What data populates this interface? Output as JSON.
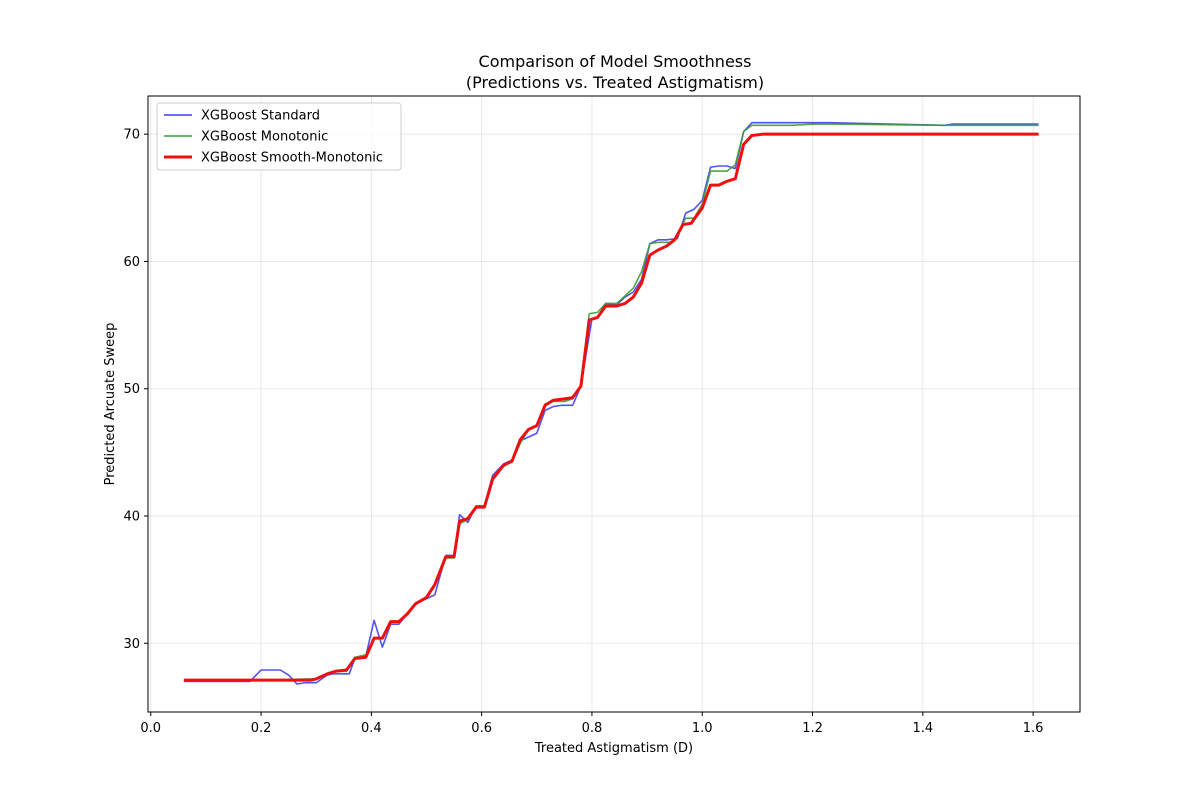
{
  "chart_data": {
    "type": "line",
    "title": "Comparison of Model Smoothness",
    "subtitle": "(Predictions vs. Treated Astigmatism)",
    "xlabel": "Treated Astigmatism (D)",
    "ylabel": "Predicted Arcuate Sweep",
    "xlim": [
      -0.005,
      1.685
    ],
    "ylim": [
      24.6,
      73.0
    ],
    "xticks": [
      0.0,
      0.2,
      0.4,
      0.6,
      0.8,
      1.0,
      1.2,
      1.4,
      1.6
    ],
    "xtick_labels": [
      "0.0",
      "0.2",
      "0.4",
      "0.6",
      "0.8",
      "1.0",
      "1.2",
      "1.4",
      "1.6"
    ],
    "yticks": [
      30,
      40,
      50,
      60,
      70
    ],
    "ytick_labels": [
      "30",
      "40",
      "50",
      "60",
      "70"
    ],
    "grid": true,
    "legend_position": "upper-left",
    "series": [
      {
        "name": "XGBoost Standard",
        "color": "#3f3fef",
        "x": [
          0.06,
          0.18,
          0.2,
          0.235,
          0.25,
          0.265,
          0.28,
          0.3,
          0.32,
          0.33,
          0.35,
          0.36,
          0.37,
          0.39,
          0.405,
          0.42,
          0.435,
          0.45,
          0.465,
          0.48,
          0.5,
          0.515,
          0.535,
          0.55,
          0.56,
          0.575,
          0.59,
          0.605,
          0.62,
          0.64,
          0.655,
          0.67,
          0.7,
          0.715,
          0.73,
          0.745,
          0.765,
          0.78,
          0.8,
          0.81,
          0.825,
          0.845,
          0.86,
          0.875,
          0.89,
          0.905,
          0.92,
          0.935,
          0.955,
          0.97,
          0.985,
          1.0,
          1.015,
          1.03,
          1.045,
          1.06,
          1.075,
          1.09,
          1.11,
          1.23,
          1.44,
          1.455,
          1.61
        ],
        "y": [
          27.0,
          27.0,
          27.9,
          27.9,
          27.5,
          26.8,
          26.9,
          26.9,
          27.5,
          27.6,
          27.6,
          27.6,
          28.8,
          29.0,
          31.8,
          29.7,
          31.5,
          31.5,
          32.3,
          33.1,
          33.5,
          33.8,
          36.9,
          36.9,
          40.1,
          39.5,
          40.8,
          40.8,
          43.2,
          44.1,
          44.4,
          45.9,
          46.5,
          48.3,
          48.6,
          48.7,
          48.7,
          50.2,
          55.5,
          55.6,
          56.7,
          56.6,
          57.2,
          57.6,
          58.6,
          61.4,
          61.7,
          61.7,
          61.8,
          63.8,
          64.1,
          64.8,
          67.4,
          67.5,
          67.5,
          67.3,
          70.2,
          70.9,
          70.9,
          70.9,
          70.7,
          70.8,
          70.8
        ]
      },
      {
        "name": "XGBoost Monotonic",
        "color": "#3a9f3a",
        "x": [
          0.06,
          0.2,
          0.29,
          0.3,
          0.32,
          0.335,
          0.355,
          0.37,
          0.39,
          0.405,
          0.42,
          0.435,
          0.45,
          0.465,
          0.48,
          0.5,
          0.515,
          0.535,
          0.55,
          0.56,
          0.575,
          0.59,
          0.605,
          0.62,
          0.64,
          0.655,
          0.67,
          0.685,
          0.7,
          0.715,
          0.73,
          0.75,
          0.765,
          0.78,
          0.795,
          0.81,
          0.825,
          0.845,
          0.86,
          0.875,
          0.89,
          0.905,
          0.92,
          0.945,
          0.955,
          0.97,
          0.985,
          1.0,
          1.015,
          1.045,
          1.06,
          1.075,
          1.09,
          1.16,
          1.21,
          1.44,
          1.455,
          1.61
        ],
        "y": [
          27.1,
          27.1,
          27.2,
          27.2,
          27.6,
          27.8,
          27.8,
          28.9,
          29.1,
          30.4,
          30.4,
          31.7,
          31.7,
          32.3,
          33.1,
          33.6,
          34.5,
          36.7,
          36.7,
          39.4,
          39.7,
          40.8,
          40.8,
          43.0,
          43.9,
          44.3,
          45.7,
          46.8,
          47.1,
          48.8,
          49.0,
          49.0,
          49.2,
          50.3,
          55.9,
          56.0,
          56.7,
          56.7,
          57.3,
          57.9,
          59.2,
          61.4,
          61.5,
          61.5,
          62.0,
          63.4,
          63.4,
          64.5,
          67.1,
          67.1,
          67.6,
          70.2,
          70.7,
          70.7,
          70.8,
          70.7,
          70.7,
          70.7
        ]
      },
      {
        "name": "XGBoost Smooth-Monotonic",
        "color": "#ee0f0f",
        "x": [
          0.06,
          0.18,
          0.2,
          0.29,
          0.3,
          0.32,
          0.335,
          0.355,
          0.37,
          0.39,
          0.405,
          0.42,
          0.435,
          0.45,
          0.465,
          0.48,
          0.5,
          0.515,
          0.535,
          0.55,
          0.56,
          0.575,
          0.59,
          0.605,
          0.62,
          0.64,
          0.655,
          0.67,
          0.685,
          0.7,
          0.715,
          0.73,
          0.75,
          0.765,
          0.78,
          0.795,
          0.81,
          0.825,
          0.845,
          0.86,
          0.875,
          0.89,
          0.905,
          0.92,
          0.935,
          0.95,
          0.965,
          0.98,
          1.0,
          1.015,
          1.03,
          1.045,
          1.06,
          1.075,
          1.09,
          1.11,
          1.61
        ],
        "y": [
          27.1,
          27.1,
          27.1,
          27.1,
          27.2,
          27.6,
          27.8,
          27.9,
          28.8,
          28.9,
          30.4,
          30.4,
          31.7,
          31.7,
          32.3,
          33.1,
          33.6,
          34.6,
          36.8,
          36.8,
          39.6,
          39.8,
          40.7,
          40.7,
          42.9,
          44.0,
          44.3,
          46.0,
          46.8,
          47.1,
          48.7,
          49.1,
          49.2,
          49.3,
          50.2,
          55.4,
          55.6,
          56.5,
          56.5,
          56.7,
          57.2,
          58.3,
          60.5,
          60.9,
          61.2,
          61.7,
          62.9,
          63.0,
          64.2,
          66.0,
          66.0,
          66.3,
          66.5,
          69.2,
          69.9,
          70.0,
          70.0
        ]
      }
    ]
  }
}
